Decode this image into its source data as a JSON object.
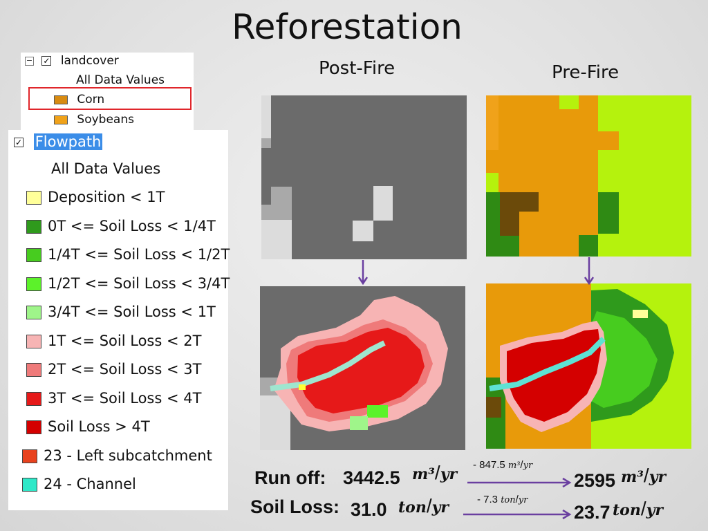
{
  "title": "Reforestation",
  "headers": {
    "post": "Post-Fire",
    "pre": "Pre-Fire"
  },
  "landcover": {
    "layer": "landcover",
    "all_values": "All Data Values",
    "items": [
      {
        "label": "Corn",
        "color": "#d88b12"
      },
      {
        "label": "Soybeans",
        "color": "#f0a21a"
      }
    ]
  },
  "flowpath": {
    "layer": "Flowpath",
    "all_values": "All Data Values",
    "items": [
      {
        "label": "Deposition < 1T",
        "color": "#ffff99"
      },
      {
        "label": "0T <= Soil Loss < 1/4T",
        "color": "#2f9a1c"
      },
      {
        "label": "1/4T <= Soil Loss < 1/2T",
        "color": "#47cc1f"
      },
      {
        "label": "1/2T <= Soil Loss < 3/4T",
        "color": "#5cf22a"
      },
      {
        "label": "3/4T <= Soil Loss < 1T",
        "color": "#9ff58a"
      },
      {
        "label": "1T <= Soil Loss < 2T",
        "color": "#f7b4b4"
      },
      {
        "label": "2T <= Soil Loss < 3T",
        "color": "#ef7a7a"
      },
      {
        "label": "3T <= Soil Loss < 4T",
        "color": "#e61919"
      },
      {
        "label": "Soil Loss > 4T",
        "color": "#d40000"
      },
      {
        "label": "23 - Left subcatchment",
        "color": "#e8421e"
      },
      {
        "label": "24 - Channel",
        "color": "#2ee8c8"
      }
    ]
  },
  "runoff": {
    "label": "Run off:",
    "post_value": "3442.5",
    "change": "- 847.5",
    "pre_value": "2595",
    "unit_num": "m³",
    "unit_den": "yr"
  },
  "soilloss": {
    "label": "Soil Loss:",
    "post_value": "31.0",
    "change": "- 7.3",
    "pre_value": "23.7",
    "unit_num": "ton",
    "unit_den": "yr"
  },
  "colors": {
    "gray_dark": "#6b6b6b",
    "gray_mid": "#a9a9a9",
    "gray_light": "#dcdcdc",
    "orange": "#e89a0a",
    "lime": "#b5f20d",
    "green_dark": "#2f8a14",
    "arrow": "#6a3fa0"
  }
}
